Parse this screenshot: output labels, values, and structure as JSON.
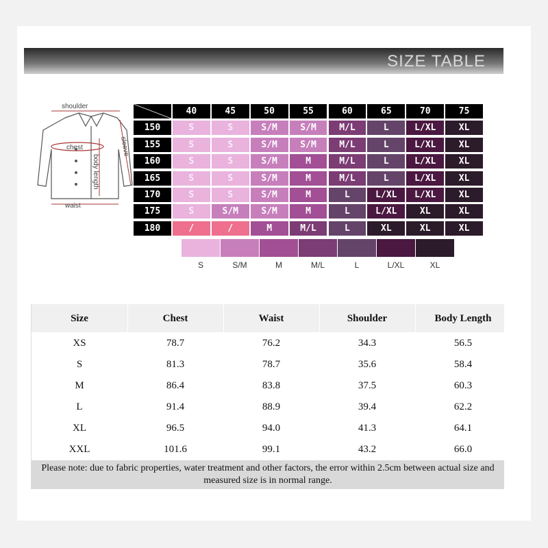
{
  "header": {
    "title": "SIZE TABLE"
  },
  "diagram": {
    "shoulder": "shoulder",
    "chest": "chest",
    "sleeve": "sleeve",
    "body_length": "body length",
    "waist": "waist"
  },
  "grid": {
    "columns": [
      "40",
      "45",
      "50",
      "55",
      "60",
      "65",
      "70",
      "75"
    ],
    "rows": [
      {
        "height": "150",
        "sizes": [
          "S",
          "S",
          "S/M",
          "S/M",
          "M/L",
          "L",
          "L/XL",
          "XL"
        ]
      },
      {
        "height": "155",
        "sizes": [
          "S",
          "S",
          "S/M",
          "S/M",
          "M/L",
          "L",
          "L/XL",
          "XL"
        ]
      },
      {
        "height": "160",
        "sizes": [
          "S",
          "S",
          "S/M",
          "M",
          "M/L",
          "L",
          "L/XL",
          "XL"
        ]
      },
      {
        "height": "165",
        "sizes": [
          "S",
          "S",
          "S/M",
          "M",
          "M/L",
          "L",
          "L/XL",
          "XL"
        ]
      },
      {
        "height": "170",
        "sizes": [
          "S",
          "S",
          "S/M",
          "M",
          "L",
          "L/XL",
          "L/XL",
          "XL"
        ]
      },
      {
        "height": "175",
        "sizes": [
          "S",
          "S/M",
          "S/M",
          "M",
          "L",
          "L/XL",
          "XL",
          "XL"
        ]
      },
      {
        "height": "180",
        "sizes": [
          "/",
          "/",
          "M",
          "M/L",
          "L",
          "XL",
          "XL",
          "XL"
        ]
      }
    ]
  },
  "legend": [
    {
      "label": "S",
      "color": "#e9b3de"
    },
    {
      "label": "S/M",
      "color": "#c77fbc"
    },
    {
      "label": "M",
      "color": "#a24f95"
    },
    {
      "label": "M/L",
      "color": "#7c3c74"
    },
    {
      "label": "L",
      "color": "#65446a"
    },
    {
      "label": "L/XL",
      "color": "#4a1840"
    },
    {
      "label": "XL",
      "color": "#2c1b2a"
    }
  ],
  "table": {
    "header": [
      "Size",
      "Chest",
      "Waist",
      "Shoulder",
      "Body Length"
    ],
    "rows": [
      [
        "XS",
        "78.7",
        "76.2",
        "34.3",
        "56.5"
      ],
      [
        "S",
        "81.3",
        "78.7",
        "35.6",
        "58.4"
      ],
      [
        "M",
        "86.4",
        "83.8",
        "37.5",
        "60.3"
      ],
      [
        "L",
        "91.4",
        "88.9",
        "39.4",
        "62.2"
      ],
      [
        "XL",
        "96.5",
        "94.0",
        "41.3",
        "64.1"
      ],
      [
        "XXL",
        "101.6",
        "99.1",
        "43.2",
        "66.0"
      ]
    ],
    "note": "Please note: due to fabric properties, water treatment and other factors, the error within 2.5cm between actual size and measured size is in normal range."
  }
}
